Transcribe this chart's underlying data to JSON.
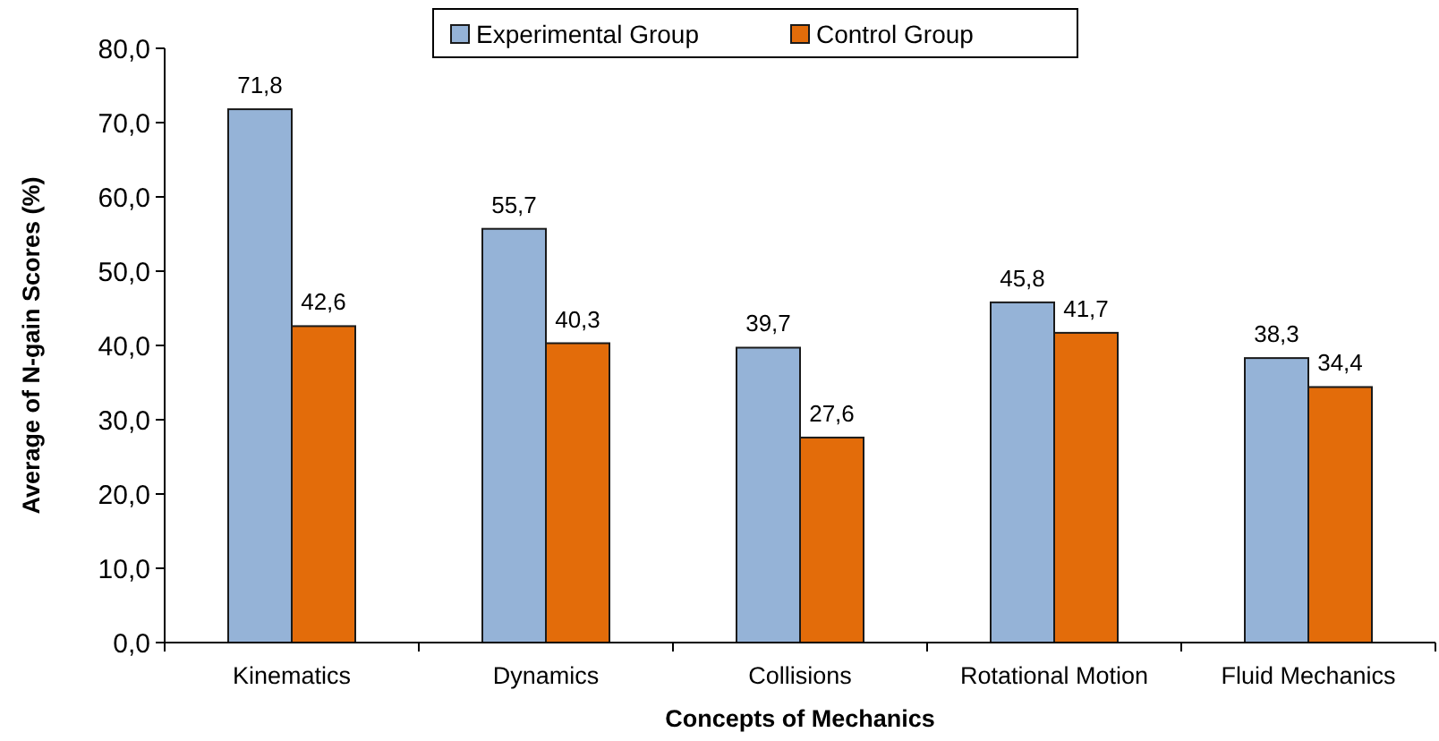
{
  "chart_data": {
    "type": "bar",
    "xlabel": "Concepts of Mechanics",
    "ylabel": "Average of N-gain Scores  (%)",
    "categories": [
      "Kinematics",
      "Dynamics",
      "Collisions",
      "Rotational Motion",
      "Fluid Mechanics"
    ],
    "series": [
      {
        "name": "Experimental Group",
        "color": "#95b3d7",
        "values": [
          71.8,
          55.7,
          39.7,
          45.8,
          38.3
        ],
        "value_labels": [
          "71,8",
          "55,7",
          "39,7",
          "45,8",
          "38,3"
        ]
      },
      {
        "name": "Control Group",
        "color": "#e36c0a",
        "values": [
          42.6,
          40.3,
          27.6,
          41.7,
          34.4
        ],
        "value_labels": [
          "42,6",
          "40,3",
          "27,6",
          "41,7",
          "34,4"
        ]
      }
    ],
    "ylim": [
      0,
      80
    ],
    "yticks": [
      {
        "value": 0,
        "label": "0,0"
      },
      {
        "value": 10,
        "label": "10,0"
      },
      {
        "value": 20,
        "label": "20,0"
      },
      {
        "value": 30,
        "label": "30,0"
      },
      {
        "value": 40,
        "label": "40,0"
      },
      {
        "value": 50,
        "label": "50,0"
      },
      {
        "value": 60,
        "label": "60,0"
      },
      {
        "value": 70,
        "label": "70,0"
      },
      {
        "value": 80,
        "label": "80,0"
      }
    ],
    "grid": false,
    "legend": "top"
  }
}
